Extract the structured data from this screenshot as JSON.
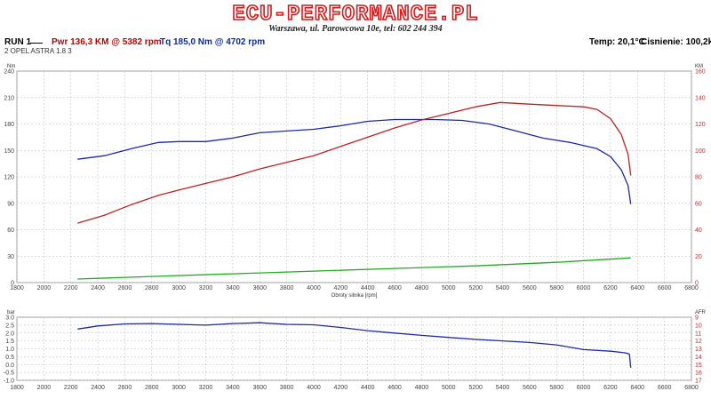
{
  "header": {
    "logo": "ECU-PERFORMANCE.PL",
    "address": "Warszawa, ul. Parowcowa 10e, tel: 602 244 394",
    "run_label": "RUN 1",
    "pwr": "Pwr  136,3 KM @ 5382 rpm",
    "tq": "Tq 185,0 Nm @ 4702 rpm",
    "temperature": "Temp: 20,1°C",
    "pressure": "Cisnienie: 100,2kPa",
    "subtitle": "2 OPEL ASTRA 1.8 3"
  },
  "colors": {
    "torque": "#1a2aa8",
    "power": "#c02020",
    "green": "#22aa22",
    "boost": "#1a2aa8",
    "logo_red": "#d81818",
    "grid": "#b8b8b8"
  },
  "chart_data": [
    {
      "type": "line",
      "xlabel": "Obroty silnika [rpm]",
      "ylabel_left": "Nm",
      "ylabel_right": "KM",
      "xlim": [
        1800,
        6800
      ],
      "ylim_left": [
        0,
        240
      ],
      "ylim_right": [
        0,
        160
      ],
      "x_ticks": [
        1800,
        2000,
        2200,
        2400,
        2600,
        2800,
        3000,
        3200,
        3400,
        3600,
        3800,
        4000,
        4200,
        4400,
        4600,
        4800,
        5000,
        5200,
        5400,
        5600,
        5800,
        6000,
        6200,
        6400,
        6600,
        6800
      ],
      "y_ticks_left": [
        0,
        30,
        60,
        90,
        120,
        150,
        180,
        210,
        240
      ],
      "y_ticks_right": [
        0,
        20,
        40,
        60,
        80,
        100,
        120,
        140,
        160
      ],
      "grid": true,
      "series": [
        {
          "axis": "left",
          "color": "#1a2aa8",
          "x": [
            2250,
            2450,
            2650,
            2850,
            3000,
            3200,
            3400,
            3600,
            3800,
            4000,
            4200,
            4400,
            4600,
            4700,
            4900,
            5100,
            5300,
            5500,
            5700,
            5900,
            6100,
            6200,
            6280,
            6330,
            6350
          ],
          "values": [
            140,
            144,
            152,
            159,
            160,
            160,
            164,
            170,
            172,
            174,
            178,
            183,
            185,
            185,
            185,
            184,
            180,
            172,
            164,
            159,
            152,
            143,
            128,
            110,
            89
          ]
        },
        {
          "axis": "right",
          "color": "#c02020",
          "x": [
            2250,
            2450,
            2650,
            2850,
            3000,
            3200,
            3400,
            3600,
            3800,
            4000,
            4200,
            4400,
            4600,
            4800,
            5000,
            5200,
            5382,
            5600,
            5800,
            6000,
            6100,
            6200,
            6280,
            6330,
            6350
          ],
          "values": [
            45,
            51,
            59,
            66,
            70,
            75,
            80,
            86,
            91,
            96,
            103,
            110,
            117,
            123,
            128,
            133,
            136.3,
            135,
            134,
            133,
            131,
            124,
            112,
            97,
            81
          ]
        },
        {
          "axis": "left",
          "color": "#22aa22",
          "x": [
            2250,
            2800,
            3400,
            4000,
            4600,
            5200,
            5800,
            6350
          ],
          "values": [
            4,
            7,
            10,
            13,
            16,
            19,
            23,
            28
          ]
        }
      ]
    },
    {
      "type": "line",
      "ylabel_left": "bar",
      "ylabel_right": "AFR",
      "xlim": [
        1800,
        6800
      ],
      "ylim_left": [
        -1.0,
        3.0
      ],
      "ylim_right": [
        9,
        17
      ],
      "x_ticks": [
        1800,
        2000,
        2200,
        2400,
        2600,
        2800,
        3000,
        3200,
        3400,
        3600,
        3800,
        4000,
        4200,
        4400,
        4600,
        4800,
        5000,
        5200,
        5400,
        5600,
        5800,
        6000,
        6200,
        6400,
        6600,
        6800
      ],
      "y_ticks_left": [
        "3.0",
        "2.5",
        "2.0",
        "1.5",
        "1.0",
        "0.5",
        "0.0",
        "-0.5",
        "-1.0"
      ],
      "y_ticks_right": [
        9,
        10,
        11,
        12,
        13,
        14,
        15,
        16,
        17
      ],
      "grid": true,
      "series": [
        {
          "axis": "left",
          "color": "#1a2aa8",
          "x": [
            2250,
            2400,
            2600,
            2800,
            3000,
            3200,
            3400,
            3600,
            3800,
            4000,
            4200,
            4400,
            4600,
            4800,
            5000,
            5200,
            5400,
            5600,
            5800,
            6000,
            6200,
            6300,
            6330,
            6340,
            6350
          ],
          "values": [
            2.25,
            2.45,
            2.58,
            2.6,
            2.55,
            2.5,
            2.6,
            2.65,
            2.55,
            2.52,
            2.35,
            2.15,
            2.0,
            1.85,
            1.72,
            1.6,
            1.5,
            1.4,
            1.25,
            0.95,
            0.85,
            0.75,
            0.7,
            0.65,
            -0.2
          ]
        }
      ]
    }
  ]
}
